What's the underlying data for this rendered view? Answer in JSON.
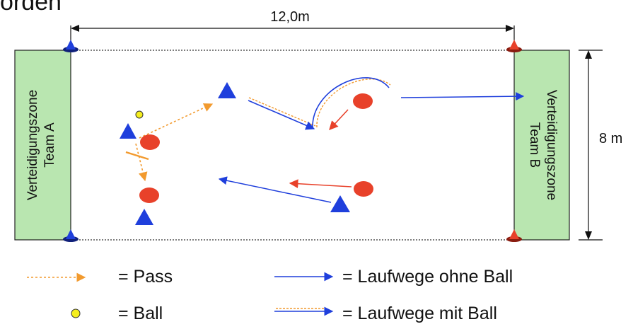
{
  "header_fragment": "orden",
  "field": {
    "width_label": "12,0m",
    "height_label": "8 m",
    "zone_a": {
      "line1": "Verteidigungszone",
      "line2": "Team A"
    },
    "zone_b": {
      "line1": "Verteidigungszone",
      "line2": "Team B"
    }
  },
  "legend": {
    "pass": "= Pass",
    "ball": "= Ball",
    "run_without_ball": "= Laufwege ohne Ball",
    "run_with_ball": "= Laufwege mit Ball"
  },
  "colors": {
    "zone_fill": "#b9e6b0",
    "team_blue": "#1f3fdc",
    "team_red": "#e8412a",
    "pass_orange": "#f29a2e",
    "ball_yellow": "#f5ee1e"
  }
}
